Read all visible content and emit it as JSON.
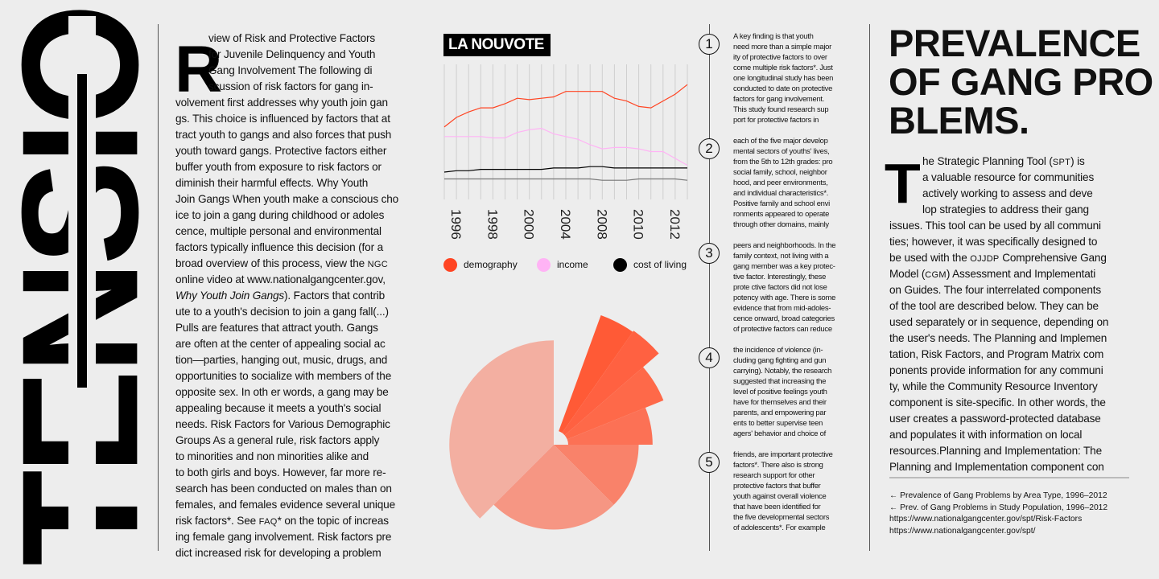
{
  "logo": {
    "text": "TENSIO"
  },
  "left_article": {
    "drop_cap": "R",
    "lines": [
      "view of Risk and Protective Factors",
      "for Juvenile Delinquency and Youth",
      "Gang Involvement The following di",
      "scussion of risk factors for gang in-",
      "volvement first addresses why youth join gan",
      "gs. This choice is influenced by factors that at",
      "tract youth to gangs and also forces that push",
      "youth toward gangs. Protective factors either",
      "buffer youth from exposure to risk factors or",
      "diminish their harmful effects. Why Youth",
      "Join Gangs When youth make a conscious cho",
      "ice to join a gang during childhood or adoles",
      "cence, multiple personal and environmental",
      "factors typically influence this decision (for a",
      "broad overview of this process, view the NGC",
      "online video at www.nationalgangcenter.gov,",
      "",
      "ute to a youth's decision to join a gang fall(...)",
      "Pulls are features that attract youth. Gangs",
      "are often at the center of appealing social ac",
      "tion—parties, hanging  out, music, drugs, and",
      "opportunities to socialize with members of the",
      "opposite sex. In oth er words, a gang may be",
      "appealing because it meets a youth's social",
      "needs. Risk Factors for Various Demographic",
      "Groups As a general rule, risk factors apply",
      "to minorities and non minorities alike and",
      "to both girls and boys. However, far more re-",
      "search has been conducted on males than on",
      "females, and females evidence several unique",
      "risk factors*. See FAQ* on the topic of increas",
      "ing female gang involvement. Risk factors pre",
      "dict increased risk for developing a problem"
    ],
    "italic_title": "Why Youth Join Gangs",
    "italic_rest": "). Factors that contrib"
  },
  "chart_title": "LA NOUVOTE",
  "chart_data": [
    {
      "type": "line",
      "title": "",
      "x_ticks": [
        "1996",
        "1998",
        "2000",
        "2004",
        "2008",
        "2010",
        "2012"
      ],
      "grid": "vertical",
      "y_axis": "unlabeled, relative index",
      "ylim": [
        0,
        100
      ],
      "legend_placement": "bottom",
      "series": [
        {
          "name": "demography",
          "color": "#ff4422",
          "values": [
            53,
            60,
            64,
            67,
            67,
            70,
            74,
            73,
            74,
            75,
            79,
            79,
            79,
            79,
            74,
            72,
            68,
            67,
            72,
            77,
            84
          ]
        },
        {
          "name": "income",
          "color": "#ffb3f5",
          "values": [
            46,
            46,
            46,
            46,
            45,
            45,
            49,
            51,
            52,
            48,
            46,
            44,
            40,
            37,
            38,
            38,
            37,
            35,
            35,
            30,
            25
          ]
        },
        {
          "name": "cost of living",
          "color": "#000000",
          "values": [
            20,
            21,
            21,
            22,
            22,
            22,
            22,
            22,
            22,
            23,
            23,
            23,
            24,
            24,
            23,
            23,
            23,
            23,
            23,
            23,
            23
          ]
        },
        {
          "color": "#777777",
          "values": [
            15,
            15,
            15,
            15,
            15,
            15,
            15,
            15,
            15,
            15,
            15,
            15,
            15,
            14,
            14,
            14,
            15,
            15,
            15,
            15,
            14
          ]
        }
      ]
    },
    {
      "type": "polar-area",
      "segments": [
        {
          "start_deg": 20,
          "end_deg": 35,
          "value": 99,
          "color": "#ff5a36"
        },
        {
          "start_deg": 35,
          "end_deg": 49,
          "value": 100,
          "color": "#ff6141"
        },
        {
          "start_deg": 49,
          "end_deg": 68,
          "value": 85,
          "color": "#fe6949"
        },
        {
          "start_deg": 68,
          "end_deg": 90,
          "value": 71,
          "color": "#fc7155"
        },
        {
          "start_deg": 90,
          "end_deg": 135,
          "value": 61,
          "color": "#f9826a"
        },
        {
          "start_deg": 135,
          "end_deg": 225,
          "value": 61,
          "color": "#f69683"
        },
        {
          "start_deg": 225,
          "end_deg": 360,
          "value": 75,
          "color": "#f3afa1"
        }
      ]
    }
  ],
  "numbered_notes": [
    {
      "num": "1",
      "lines": [
        "A key finding is that youth",
        "need more than a simple major",
        "ity of protective factors to over",
        "come multiple risk factors*. Just",
        "one longitudinal study has been",
        "conducted to date on protective",
        "factors for gang involvement.",
        "This study found research sup",
        "port for protective factors in"
      ]
    },
    {
      "num": "2",
      "lines": [
        "each of the five major develop",
        "mental sectors of youths' lives,",
        "from the 5th to 12th grades: pro",
        "social family, school, neighbor",
        "hood, and peer environments,",
        "and individual characteristics*.",
        "Positive family and school envi",
        "ronments appeared to operate",
        "through other domains, mainly"
      ]
    },
    {
      "num": "3",
      "lines": [
        "peers and neighborhoods. In the",
        "family context, not living with a",
        "gang member was a key protec-",
        "tive factor. Interestingly, these",
        "prote ctive factors did not lose",
        "potency with age. There is some",
        "evidence that from mid-adoles-",
        "cence onward, broad categories",
        "of protective factors can reduce"
      ]
    },
    {
      "num": "4",
      "lines": [
        " the incidence of violence (in-",
        "cluding gang fighting and gun",
        "carrying). Notably, the research",
        "suggested that increasing the",
        "level of positive feelings youth",
        "have for themselves and their",
        "parents, and empowering par",
        "ents to better supervise teen",
        "agers' behavior and choice of"
      ]
    },
    {
      "num": "5",
      "lines": [
        "friends, are important protective",
        "factors*. There also is strong",
        "research support for other",
        "protective factors that buffer",
        "youth against overall violence",
        "that have been identified for",
        "the five developmental sectors",
        "of adolescents*. For example"
      ]
    }
  ],
  "right_article": {
    "heading_lines": [
      "PREVALENCE",
      "OF GANG PRO",
      "BLEMS."
    ],
    "drop_cap": "T",
    "lines": [
      "he Strategic Planning Tool (SPT) is",
      "a valuable resource for communities",
      "actively working to assess and deve",
      "lop strategies to address their gang",
      "issues. This tool can be used by all communi",
      "ties; however, it was specifically designed to",
      "be used with the OJJDP Comprehensive Gang",
      "Model (CGM) Assessment and Implementati",
      "on Guides. The four interrelated components",
      "of the tool are described below. They can be",
      "used separately or in sequence, depending on",
      "the user's needs. The Planning and Implemen",
      "tation, Risk Factors, and Program Matrix com",
      "ponents provide information for any communi",
      "ty, while the Community Resource Inventory",
      "component is site-specific. In other words, the",
      "user creates a password-protected database",
      "and populates it with information on local",
      "resources.Planning and Implementation: The",
      "Planning and Implementation component con"
    ],
    "footnotes": [
      "← Prevalence of Gang Problems by Area Type, 1996–2012",
      "← Prev. of Gang Problems in Study Population, 1996–2012",
      "https://www.nationalgangcenter.gov/spt/Risk-Factors",
      "https://www.nationalgangcenter.gov/spt/"
    ]
  }
}
